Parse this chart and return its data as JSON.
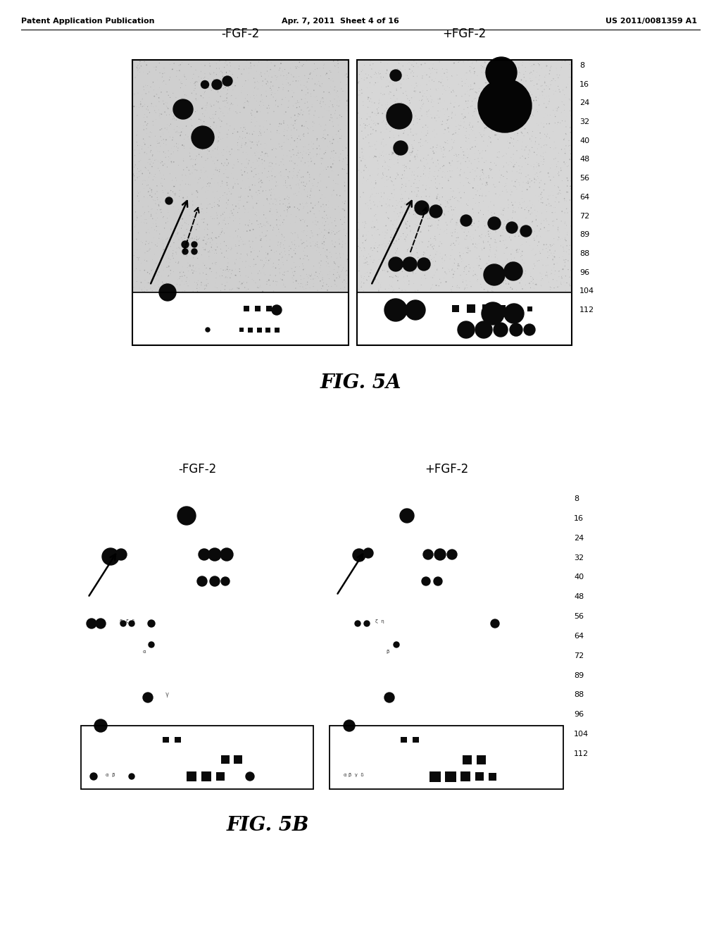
{
  "header_left": "Patent Application Publication",
  "header_center": "Apr. 7, 2011  Sheet 4 of 16",
  "header_right": "US 2011/0081359 A1",
  "fig5a_title": "FIG. 5A",
  "fig5b_title": "FIG. 5B",
  "label_neg": "-FGF-2",
  "label_pos": "+FGF-2",
  "scale_labels": [
    "8",
    "16",
    "24",
    "32",
    "40",
    "48",
    "56",
    "64",
    "72",
    "89",
    "88",
    "96",
    "104",
    "112"
  ],
  "bg_color": "#ffffff",
  "dot_color": "#111111"
}
